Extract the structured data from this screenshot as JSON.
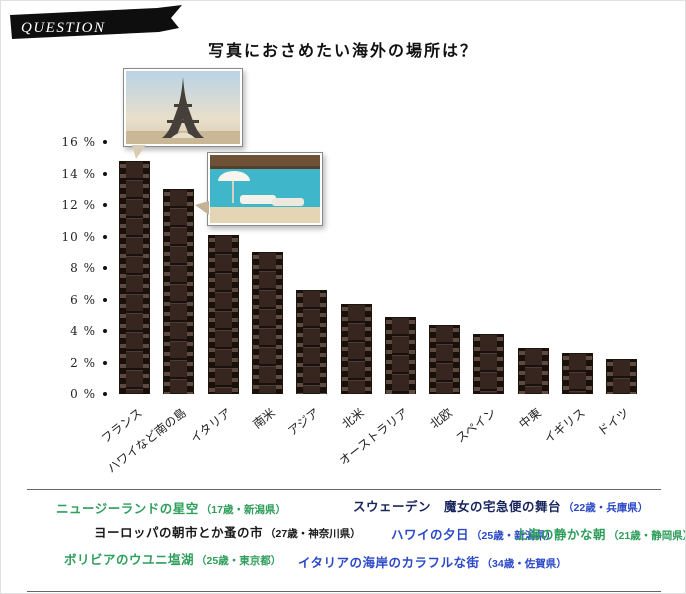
{
  "banner": {
    "label": "QUESTION"
  },
  "title": "写真におさめたい海外の場所は？",
  "chart_data": {
    "type": "bar",
    "title": "写真におさめたい海外の場所は？",
    "categories": [
      "フランス",
      "ハワイなど南の島",
      "イタリア",
      "南米",
      "アジア",
      "北米",
      "オーストラリア",
      "北欧",
      "スペイン",
      "中東",
      "イギリス",
      "ドイツ"
    ],
    "values": [
      14.8,
      13.0,
      10.1,
      9.0,
      6.6,
      5.7,
      4.9,
      4.4,
      3.8,
      2.9,
      2.6,
      2.2
    ],
    "unit": "%",
    "ylim": [
      0,
      16
    ],
    "ytick_step": 2,
    "ytick_labels": [
      "16 %",
      "14 %",
      "12 %",
      "10 %",
      "8 %",
      "6 %",
      "4 %",
      "2 %",
      "0 %"
    ],
    "grid": false,
    "legend_position": "none",
    "bar_style": "film-strip",
    "bar_color": "#37261f",
    "annotations": [
      {
        "type": "photo",
        "name": "eiffel-tower-photo",
        "attached_to": "フランス"
      },
      {
        "type": "photo",
        "name": "beach-resort-photo",
        "attached_to": "ハワイなど南の島"
      }
    ]
  },
  "comments": [
    {
      "text": "ニュージーランドの星空",
      "meta": "（17歳・新潟県）",
      "color": "#2e9e5b",
      "meta_color": "#2e9e5b"
    },
    {
      "text": "スウェーデン　魔女の宅急便の舞台",
      "meta": "（22歳・兵庫県）",
      "color": "#17255c",
      "meta_color": "#2c49c8"
    },
    {
      "text": "ヨーロッパの朝市とか蚤の市",
      "meta": "（27歳・神奈川県）",
      "color": "#1a1a1a",
      "meta_color": "#1a1a1a"
    },
    {
      "text": "ハワイの夕日",
      "meta": "（25歳・新潟県）",
      "color": "#2c49c8",
      "meta_color": "#2c49c8"
    },
    {
      "text": "上海の静かな朝",
      "meta": "（21歳・静岡県）",
      "color": "#2e9e5b",
      "meta_color": "#2e9e5b"
    },
    {
      "text": "ボリビアのウユニ塩湖",
      "meta": "（25歳・東京都）",
      "color": "#2e9e5b",
      "meta_color": "#2e9e5b"
    },
    {
      "text": "イタリアの海岸のカラフルな街",
      "meta": "（34歳・佐賀県）",
      "color": "#2c49c8",
      "meta_color": "#2c49c8"
    }
  ]
}
